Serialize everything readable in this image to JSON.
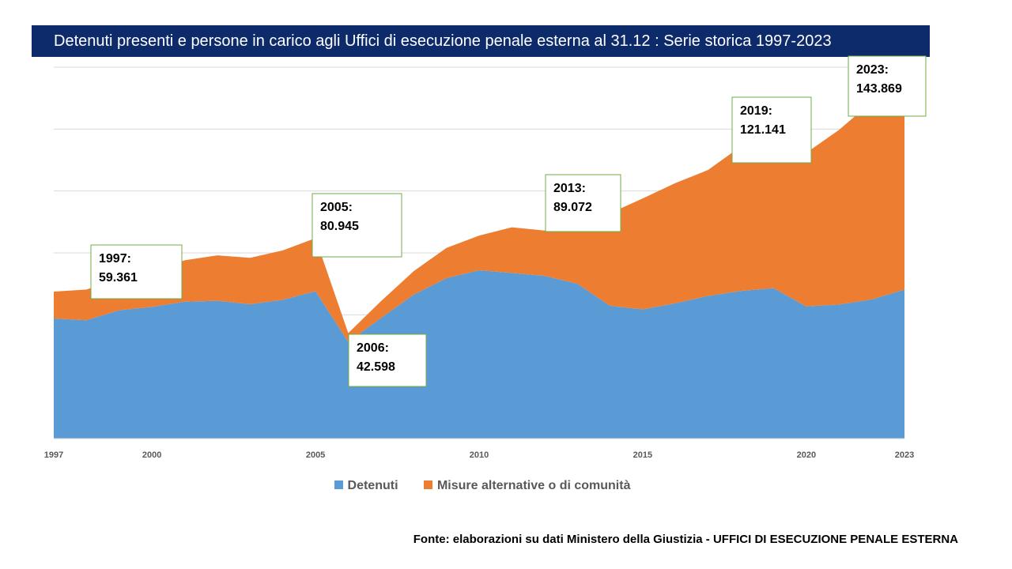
{
  "title": "Detenuti presenti e persone in carico agli Uffici di esecuzione penale esterna al 31.12  : Serie storica 1997-2023",
  "source": "Fonte: elaborazioni su dati Ministero della Giustizia - UFFICI DI ESECUZIONE PENALE ESTERNA",
  "colors": {
    "detenuti": "#5b9bd5",
    "misure": "#ed7d31",
    "grid": "#d9d9d9",
    "callout_border": "#70ad47",
    "title_bg": "#0d2b6b"
  },
  "chart_data": {
    "type": "area",
    "stacked": true,
    "title": "Detenuti presenti e persone in carico agli Uffici di esecuzione penale esterna al 31.12  : Serie storica 1997-2023",
    "x": [
      1997,
      1998,
      1999,
      2000,
      2001,
      2002,
      2003,
      2004,
      2005,
      2006,
      2007,
      2008,
      2009,
      2010,
      2011,
      2012,
      2013,
      2014,
      2015,
      2016,
      2017,
      2018,
      2019,
      2020,
      2021,
      2022,
      2023
    ],
    "x_tick_labels": [
      "1997",
      "2000",
      "2005",
      "2010",
      "2015",
      "2020",
      "2023"
    ],
    "series": [
      {
        "name": "Detenuti",
        "values": [
          48495,
          47811,
          51814,
          53165,
          55275,
          55670,
          54237,
          56068,
          59523,
          39005,
          48693,
          58127,
          64791,
          67961,
          66897,
          65701,
          62536,
          53623,
          52164,
          54653,
          57608,
          59655,
          60769,
          53364,
          54134,
          56196,
          60166
        ]
      },
      {
        "name": "Misure alternative o di comunità",
        "values": [
          10866,
          12389,
          12986,
          14335,
          16725,
          18330,
          18763,
          19932,
          21422,
          3593,
          6807,
          9473,
          12209,
          14039,
          18417,
          18299,
          26536,
          37377,
          44836,
          48547,
          50892,
          58345,
          60372,
          62066,
          70516,
          79804,
          83703
        ]
      }
    ],
    "totals": [
      59361,
      60200,
      64800,
      67500,
      72000,
      74000,
      73000,
      76000,
      80945,
      42598,
      55500,
      67600,
      77000,
      82000,
      85314,
      84000,
      89072,
      91000,
      97000,
      103200,
      108500,
      118000,
      121141,
      115430,
      124650,
      136000,
      143869
    ],
    "annotations": [
      {
        "year": "1997:",
        "value": "59.361"
      },
      {
        "year": "2005:",
        "value": "80.945"
      },
      {
        "year": "2006:",
        "value": "42.598"
      },
      {
        "year": "2013:",
        "value": "89.072"
      },
      {
        "year": "2019:",
        "value": "121.141"
      },
      {
        "year": "2023:",
        "value": "143.869"
      }
    ],
    "xlim": [
      1997,
      2023
    ],
    "ylim": [
      0,
      150000
    ],
    "grid": true,
    "legend_position": "bottom"
  }
}
